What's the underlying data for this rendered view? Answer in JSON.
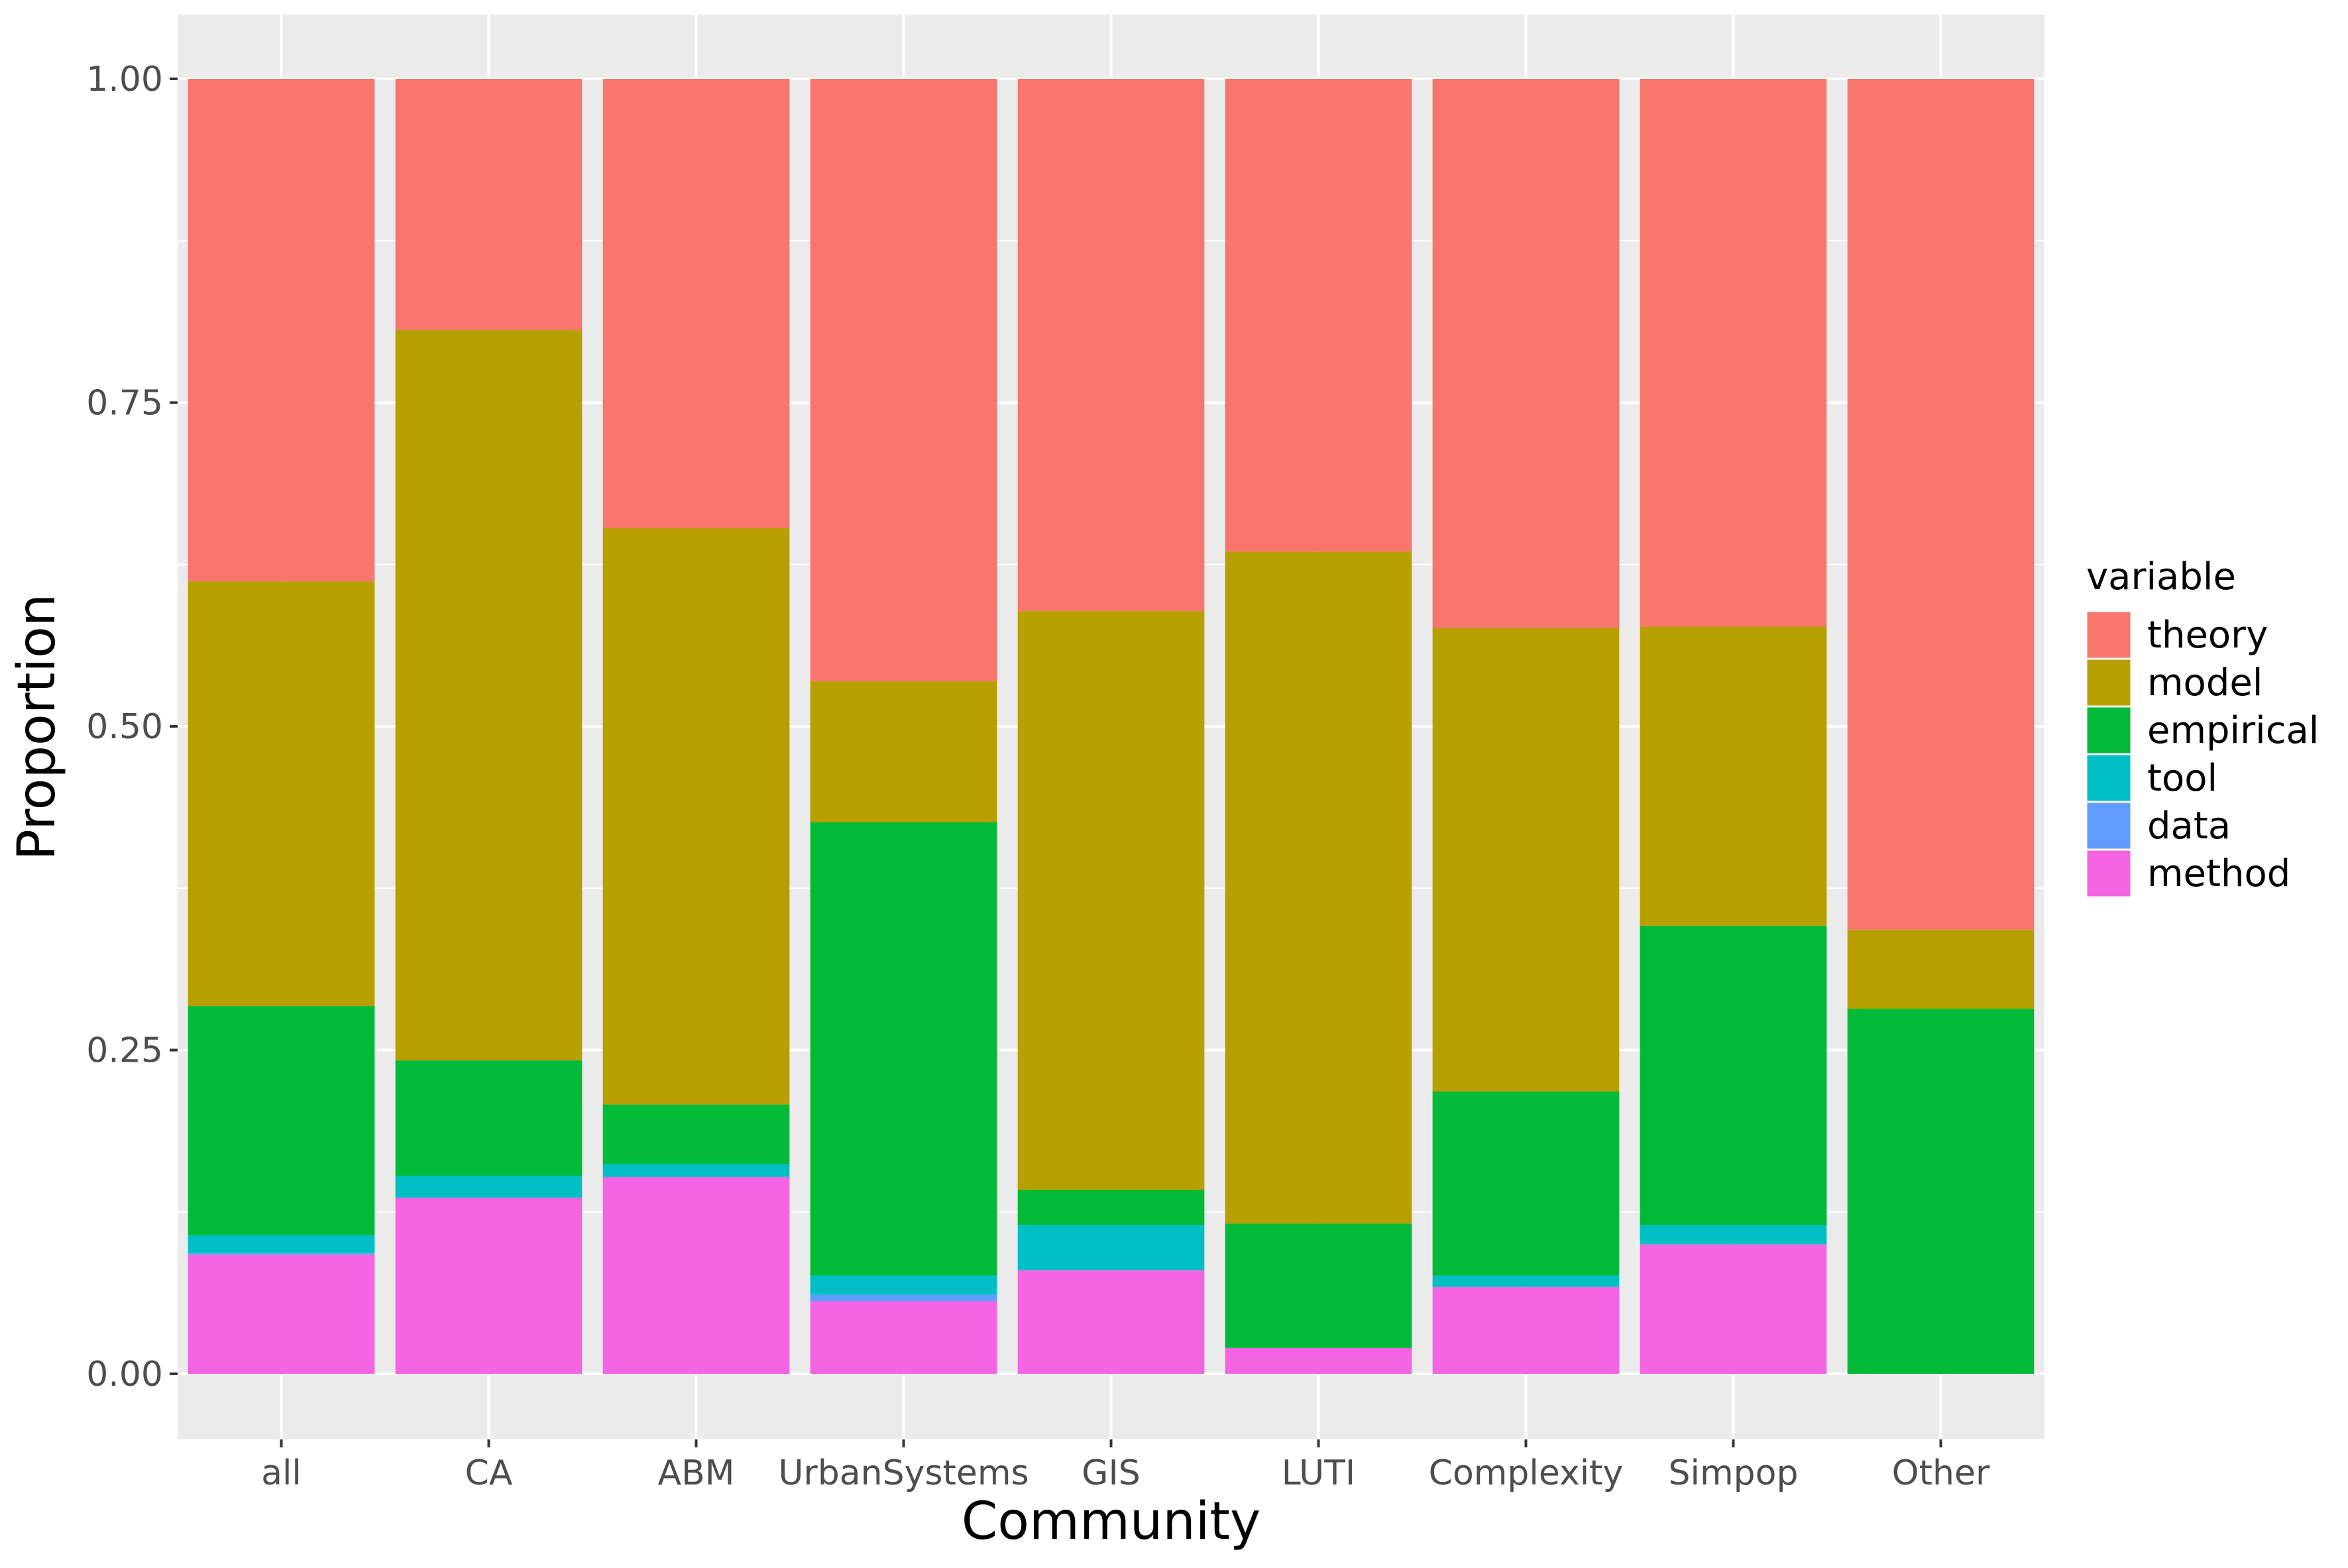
{
  "chart_data": {
    "type": "bar",
    "stacked": true,
    "title": "",
    "xlabel": "Community",
    "ylabel": "Proportion",
    "ylim": [
      0,
      1
    ],
    "y_ticks": [
      "0.00",
      "0.25",
      "0.50",
      "0.75",
      "1.00"
    ],
    "grid": true,
    "legend_position": "right",
    "legend_title": "variable",
    "categories": [
      "all",
      "CA",
      "ABM",
      "UrbanSystems",
      "GIS",
      "LUTI",
      "Complexity",
      "Simpop",
      "Other"
    ],
    "series": [
      {
        "name": "theory",
        "color": "#F8766D",
        "values": [
          0.388,
          0.194,
          0.347,
          0.465,
          0.411,
          0.365,
          0.424,
          0.423,
          0.657
        ]
      },
      {
        "name": "model",
        "color": "#B79F00",
        "values": [
          0.328,
          0.564,
          0.445,
          0.109,
          0.447,
          0.519,
          0.358,
          0.231,
          0.061
        ]
      },
      {
        "name": "empirical",
        "color": "#00BA38",
        "values": [
          0.177,
          0.089,
          0.046,
          0.35,
          0.027,
          0.096,
          0.142,
          0.231,
          0.282
        ]
      },
      {
        "name": "tool",
        "color": "#00BFC4",
        "values": [
          0.014,
          0.017,
          0.01,
          0.015,
          0.035,
          0.0,
          0.009,
          0.015,
          0.0
        ]
      },
      {
        "name": "data",
        "color": "#619CFF",
        "values": [
          0.001,
          0.0,
          0.0,
          0.005,
          0.0,
          0.0,
          0.0,
          0.0,
          0.0
        ]
      },
      {
        "name": "method",
        "color": "#F564E3",
        "values": [
          0.092,
          0.136,
          0.152,
          0.056,
          0.08,
          0.02,
          0.067,
          0.1,
          0.0
        ]
      }
    ],
    "stack_order_bottom_to_top": [
      "method",
      "data",
      "tool",
      "empirical",
      "model",
      "theory"
    ],
    "panel_background": "#EBEBEB",
    "gridline_color": "#FFFFFF",
    "axis_text_color": "#4D4D4D"
  }
}
